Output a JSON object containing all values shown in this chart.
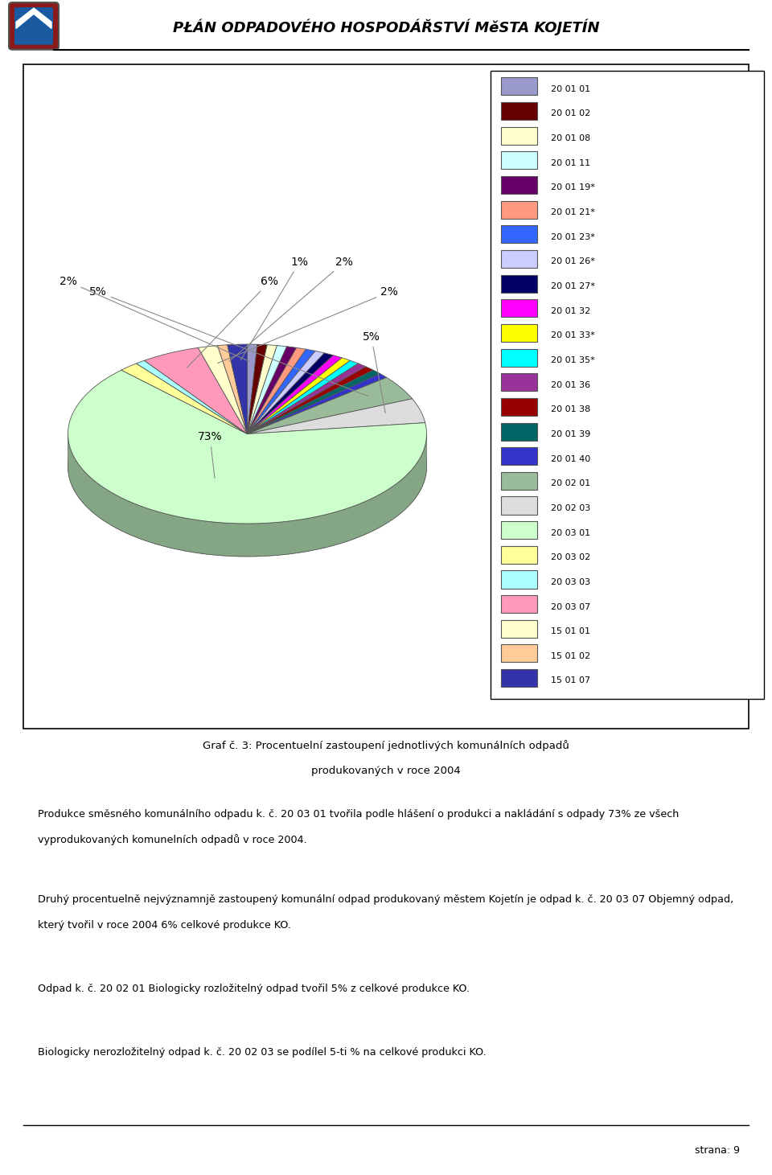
{
  "title": "PŁÁN ODPADOVÉHO HOSPODÁŘSTVÍ MěSTA KOJETÍN",
  "chart_title_line1": "Graf č. 3: Procentuelní zastoupení jednotlivých komunelních odpadů",
  "chart_title_line2": "produkovaných v roce 2004",
  "legend_labels": [
    "20 01 01",
    "20 01 02",
    "20 01 08",
    "20 01 11",
    "20 01 19*",
    "20 01 21*",
    "20 01 23*",
    "20 01 26*",
    "20 01 27*",
    "20 01 32",
    "20 01 33*",
    "20 01 35*",
    "20 01 36",
    "20 01 38",
    "20 01 39",
    "20 01 40",
    "20 02 01",
    "20 02 03",
    "20 03 01",
    "20 03 02",
    "20 03 03",
    "20 03 07",
    "15 01 01",
    "15 01 02",
    "15 01 07"
  ],
  "legend_colors": [
    "#9999CC",
    "#660000",
    "#FFFFCC",
    "#CCFFFF",
    "#660066",
    "#FF9980",
    "#3366FF",
    "#CCCCFF",
    "#000066",
    "#FF00FF",
    "#FFFF00",
    "#00FFFF",
    "#993399",
    "#990000",
    "#006666",
    "#3333CC",
    "#99BB99",
    "#DDDDDD",
    "#CCFFCC",
    "#FFFF99",
    "#AAFFFF",
    "#FF99BB",
    "#FFFFCC",
    "#FFCC99",
    "#3333AA"
  ],
  "sizes": [
    1,
    1,
    1,
    1,
    1,
    1,
    1,
    1,
    1,
    1,
    1,
    1,
    1,
    1,
    1,
    1,
    5,
    5,
    73,
    2,
    1,
    6,
    2,
    1,
    2
  ],
  "pie_colors": [
    "#9999CC",
    "#660000",
    "#FFFFCC",
    "#CCFFFF",
    "#660066",
    "#FF9980",
    "#3366FF",
    "#CCCCFF",
    "#000066",
    "#FF00FF",
    "#FFFF00",
    "#00FFFF",
    "#993399",
    "#990000",
    "#006666",
    "#3333CC",
    "#99BB99",
    "#DDDDDD",
    "#CCFFCC",
    "#FFFF99",
    "#AAFFFF",
    "#FF99BB",
    "#FFFFCC",
    "#FFCC99",
    "#3333AA"
  ],
  "body_text_lines": [
    "Produkce směsného komunálního odpadu k. č. 20 03 01 tvořila podle hlášení o produkci a nakládání s odpady 73% ze všech",
    "vyprodukovaných komunelních odpadů v roce 2004.",
    "",
    "Druhý procentuelně nejvýznamnjě zastoupený komunální odpad produkovaný městem Kojetín je odpad k. č. 20 03 07 Objemný odpad,",
    "který tvořil v roce 2004 6% celkové produkce KO.",
    "",
    "Odpad k. č. 20 02 01 Biologicky rozložitelný odpad tvořil 5% z celkové produkce KO.",
    "",
    "Biologicky nerozložitelný odpad k. č. 20 02 03 se podílel 5-ti % na celkové produkci KO."
  ],
  "footer": "strana: 9",
  "bg_color": "#FFFFFF"
}
